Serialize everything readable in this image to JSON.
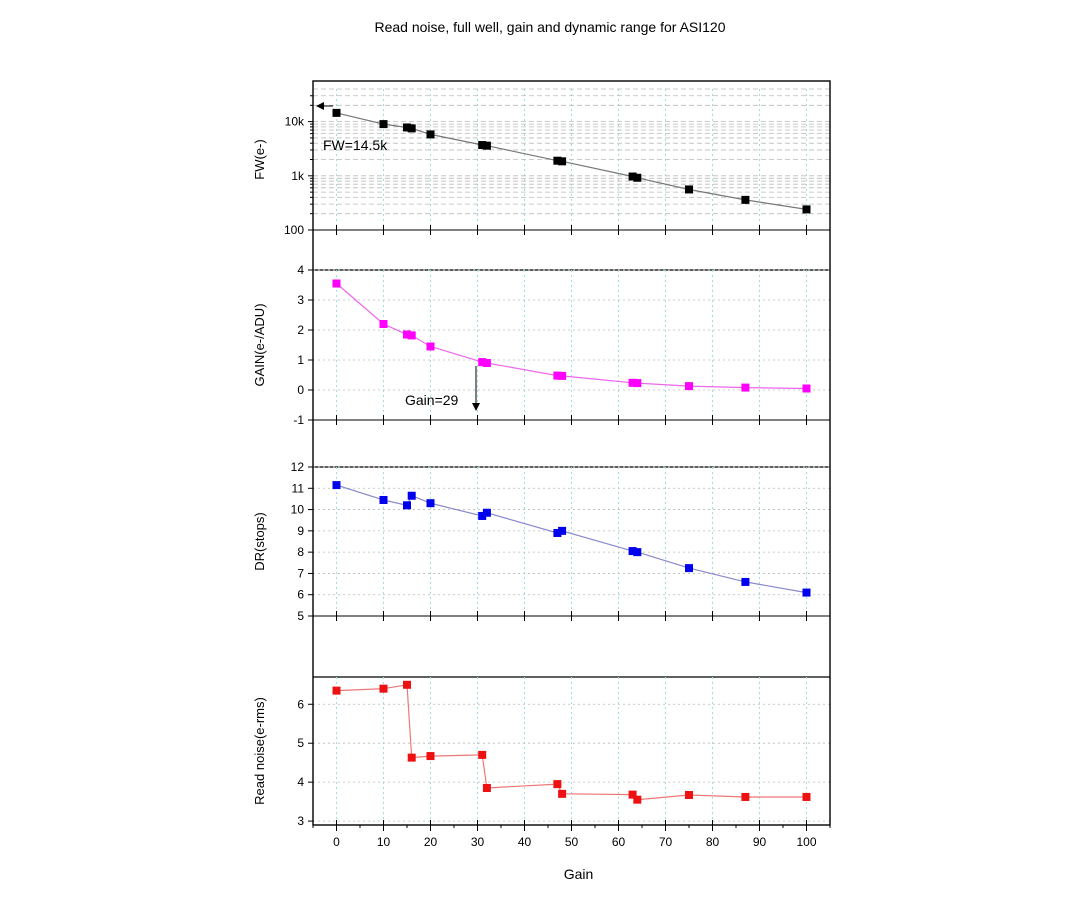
{
  "title": "Read noise, full well, gain and dynamic range for ASI120",
  "colors": {
    "fw": "#000000",
    "gain": "#ff00ff",
    "dr": "#0000ee",
    "rn": "#ee1111",
    "fw_line": "#777777",
    "gain_line": "#ee66ee",
    "dr_line": "#8888cc",
    "rn_line": "#ee7777",
    "grid": "#bbbbbb",
    "xgrid": "#9edfe6"
  },
  "chart_data": [
    {
      "type": "line",
      "ylabel": "FW(e-)",
      "yscale": "log",
      "ylim": [
        100,
        40000
      ],
      "yticks": [
        100,
        1000,
        10000
      ],
      "yticklabels": [
        "100",
        "1k",
        "10k"
      ],
      "x": [
        0,
        10,
        15,
        16,
        20,
        31,
        32,
        47,
        48,
        63,
        64,
        75,
        87,
        100
      ],
      "y": [
        14500,
        9000,
        7800,
        7500,
        5800,
        3700,
        3600,
        1900,
        1850,
        970,
        920,
        560,
        360,
        240
      ],
      "annotation": "FW=14.5k",
      "grid": true
    },
    {
      "type": "line",
      "ylabel": "GAIN(e-/ADU)",
      "ylim": [
        -1,
        4
      ],
      "yticks": [
        -1,
        0,
        1,
        2,
        3,
        4
      ],
      "x": [
        0,
        10,
        15,
        16,
        20,
        31,
        32,
        47,
        48,
        63,
        64,
        75,
        87,
        100
      ],
      "y": [
        3.55,
        2.2,
        1.85,
        1.82,
        1.45,
        0.93,
        0.9,
        0.48,
        0.47,
        0.24,
        0.23,
        0.13,
        0.08,
        0.05
      ],
      "annotation": "Gain=29",
      "grid": true
    },
    {
      "type": "line",
      "ylabel": "DR(stops)",
      "ylim": [
        5,
        12
      ],
      "yticks": [
        5,
        6,
        7,
        8,
        9,
        10,
        11,
        12
      ],
      "x": [
        0,
        10,
        15,
        16,
        20,
        31,
        32,
        47,
        48,
        63,
        64,
        75,
        87,
        100
      ],
      "y": [
        11.15,
        10.45,
        10.2,
        10.65,
        10.3,
        9.7,
        9.85,
        8.9,
        9.0,
        8.05,
        8.0,
        7.25,
        6.6,
        6.1
      ],
      "grid": true
    },
    {
      "type": "line",
      "ylabel": "Read noise(e-rms)",
      "ylim": [
        2.9,
        6.7
      ],
      "yticks": [
        3,
        4,
        5,
        6
      ],
      "x": [
        0,
        10,
        15,
        16,
        20,
        31,
        32,
        47,
        48,
        63,
        64,
        75,
        87,
        100
      ],
      "y": [
        6.35,
        6.4,
        6.5,
        4.63,
        4.67,
        4.7,
        3.85,
        3.95,
        3.7,
        3.68,
        3.55,
        3.67,
        3.62,
        3.62
      ],
      "xlabel": "Gain",
      "xlim": [
        -5,
        105
      ],
      "xticks": [
        0,
        10,
        20,
        30,
        40,
        50,
        60,
        70,
        80,
        90,
        100
      ],
      "grid": true
    }
  ]
}
